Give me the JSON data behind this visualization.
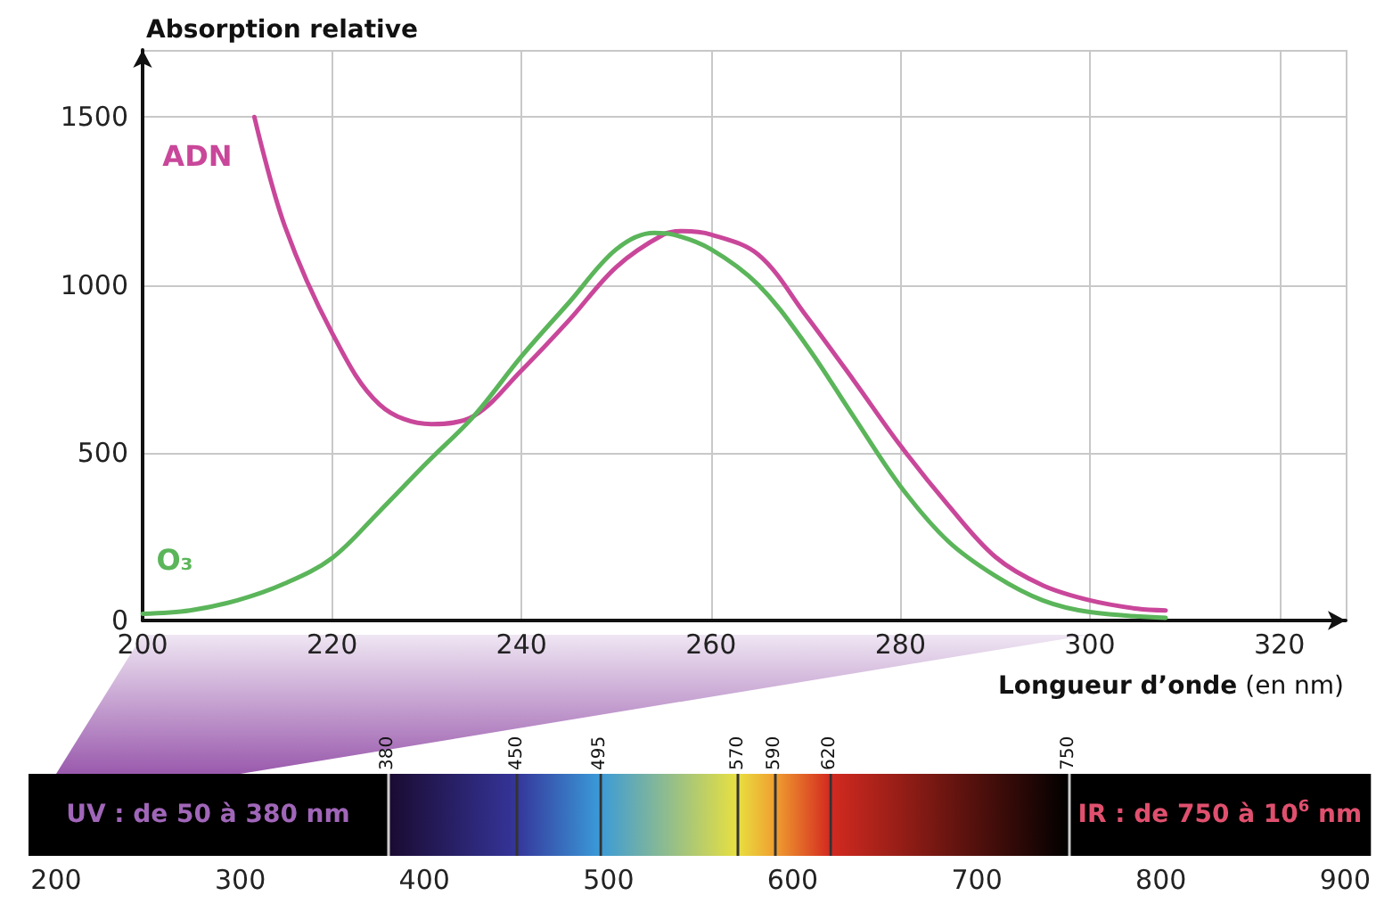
{
  "chart_data": [
    {
      "type": "line",
      "ylabel": "Absorption relative",
      "xlabel": "Longueur d’onde (en nm)",
      "xlim": [
        200,
        327
      ],
      "xticks": [
        200,
        220,
        240,
        260,
        280,
        300,
        320
      ],
      "ylim": [
        0,
        1700
      ],
      "yticks": [
        0,
        500,
        1000,
        1500
      ],
      "grid": true,
      "marker": "none",
      "series": [
        {
          "name": "ADN",
          "color": "#c9479a",
          "x": [
            211.8,
            215,
            220,
            225,
            230.5,
            235,
            240,
            245,
            250,
            255,
            257,
            260,
            265,
            270,
            275,
            280,
            285,
            290,
            295,
            300,
            305,
            308
          ],
          "values": [
            1500,
            1176,
            857,
            644,
            585,
            610,
            745,
            894,
            1053,
            1150,
            1160,
            1150,
            1090,
            910,
            718,
            521,
            345,
            190,
            105,
            60,
            35,
            30
          ]
        },
        {
          "name": "O₃",
          "color": "#5bb55a",
          "x": [
            200,
            205,
            210,
            215,
            220,
            225,
            230,
            235,
            240,
            245,
            250,
            254,
            256,
            260,
            265,
            270,
            275,
            280,
            285,
            290,
            295,
            300,
            308
          ],
          "values": [
            20,
            30,
            60,
            110,
            186,
            325,
            470,
            610,
            787,
            947,
            1106,
            1155,
            1150,
            1106,
            1000,
            823,
            610,
            400,
            237,
            133,
            60,
            25,
            8
          ]
        }
      ]
    },
    {
      "type": "bar",
      "orientation": "horizontal",
      "categories": [
        null
      ],
      "xlim": [
        185,
        914
      ],
      "xticks": [
        200,
        300,
        400,
        500,
        600,
        700,
        800,
        900
      ],
      "series": [
        {
          "name": "UV : de 50 à 380 nm",
          "color": "#000000",
          "base": [
            185
          ],
          "values": [
            195
          ]
        },
        {
          "color": "#1a0a30",
          "base": [
            380
          ],
          "values": [
            70
          ]
        },
        {
          "color": "#35359a",
          "base": [
            450
          ],
          "values": [
            45
          ]
        },
        {
          "color": "#3a9ad8",
          "base": [
            495
          ],
          "values": [
            75
          ]
        },
        {
          "color": "#e8e040",
          "base": [
            570
          ],
          "values": [
            20
          ]
        },
        {
          "color": "#f0a030",
          "base": [
            590
          ],
          "values": [
            30
          ]
        },
        {
          "color": "#d42a20",
          "base": [
            620
          ],
          "values": [
            130
          ]
        },
        {
          "name": "IR : de 750 à 10$^{6}$ nm",
          "color": "#000000",
          "base": [
            750
          ],
          "values": [
            164
          ]
        }
      ],
      "ref_lines": [
        {
          "axis": "x",
          "value": 380,
          "label": "380",
          "color": "#cccccc"
        },
        {
          "axis": "x",
          "value": 450,
          "label": "450",
          "color": "#333333"
        },
        {
          "axis": "x",
          "value": 495,
          "label": "495",
          "color": "#333333"
        },
        {
          "axis": "x",
          "value": 570,
          "label": "570",
          "color": "#333333"
        },
        {
          "axis": "x",
          "value": 590,
          "label": "590",
          "color": "#333333"
        },
        {
          "axis": "x",
          "value": 620,
          "label": "620",
          "color": "#333333"
        },
        {
          "axis": "x",
          "value": 750,
          "label": "750",
          "color": "#cccccc"
        }
      ]
    }
  ]
}
